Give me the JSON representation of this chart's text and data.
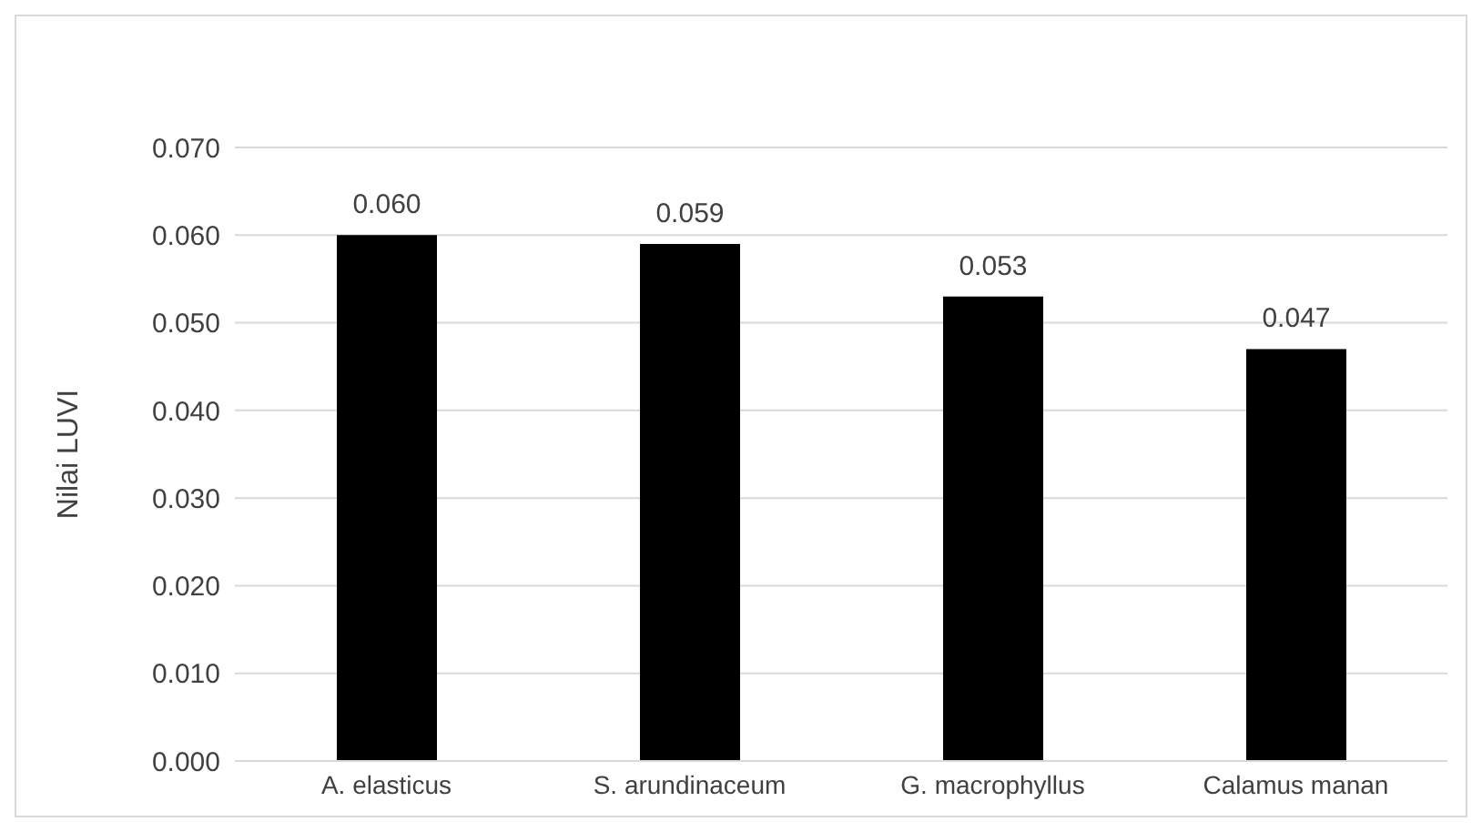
{
  "chart_data": {
    "type": "bar",
    "ylabel": "Nilai LUVI",
    "categories": [
      "A. elasticus",
      "S. arundinaceum",
      "G. macrophyllus",
      "Calamus manan"
    ],
    "values": [
      0.06,
      0.059,
      0.053,
      0.047
    ],
    "value_labels": [
      "0.060",
      "0.059",
      "0.053",
      "0.047"
    ],
    "color": "#000000",
    "ylim": [
      0,
      0.07
    ],
    "yticks": [
      {
        "value": 0,
        "label": "0.000"
      },
      {
        "value": 0.01,
        "label": "0.010"
      },
      {
        "value": 0.02,
        "label": "0.020"
      },
      {
        "value": 0.03,
        "label": "0.030"
      },
      {
        "value": 0.04,
        "label": "0.040"
      },
      {
        "value": 0.05,
        "label": "0.050"
      },
      {
        "value": 0.06,
        "label": "0.060"
      },
      {
        "value": 0.07,
        "label": "0.070"
      }
    ],
    "grid": "y"
  }
}
